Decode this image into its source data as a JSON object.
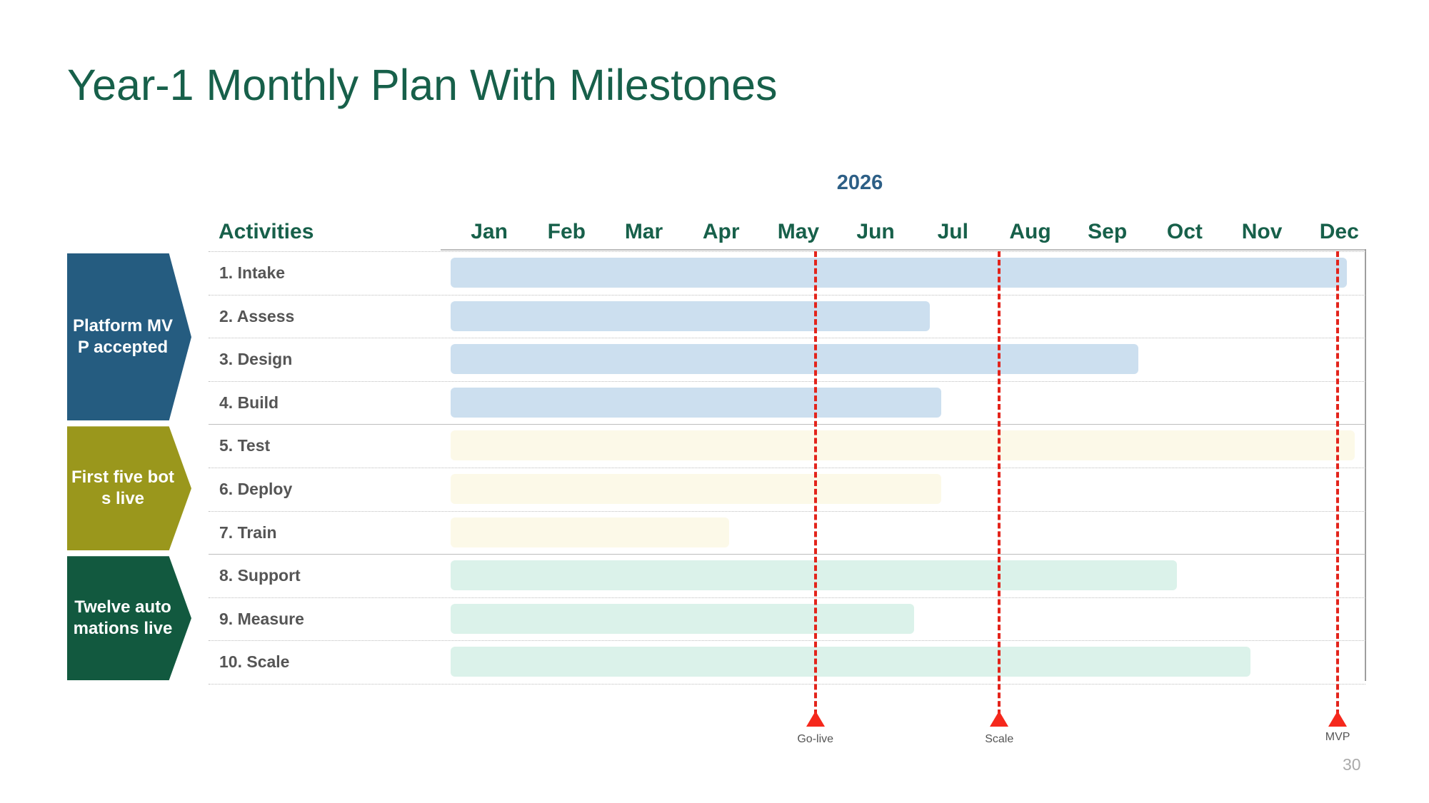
{
  "slide": {
    "title": "Year-1 Monthly Plan With Milestones",
    "page_number": "30"
  },
  "chart_data": {
    "type": "gantt",
    "year": "2026",
    "activities_header": "Activities",
    "months": [
      "Jan",
      "Feb",
      "Mar",
      "Apr",
      "May",
      "Jun",
      "Jul",
      "Aug",
      "Sep",
      "Oct",
      "Nov",
      "Dec"
    ],
    "groups": [
      {
        "label": "Platform MVP accepted",
        "color": "#255C80",
        "bar_color": "#CCDFEF",
        "rows": [
          0,
          3
        ]
      },
      {
        "label": "First five bots live",
        "color": "#9A971C",
        "bar_color": "#FCF9E8",
        "rows": [
          4,
          6
        ]
      },
      {
        "label": "Twelve automations live",
        "color": "#12593F",
        "bar_color": "#DBF2EA",
        "rows": [
          7,
          9
        ]
      }
    ],
    "activities": [
      {
        "label": "1. Intake",
        "start_month": 0,
        "end_month": 11.6,
        "group": 0
      },
      {
        "label": "2. Assess",
        "start_month": 0,
        "end_month": 6.2,
        "group": 0
      },
      {
        "label": "3. Design",
        "start_month": 0,
        "end_month": 8.9,
        "group": 0
      },
      {
        "label": "4. Build",
        "start_month": 0,
        "end_month": 6.35,
        "group": 0
      },
      {
        "label": "5. Test",
        "start_month": 0,
        "end_month": 11.7,
        "group": 1
      },
      {
        "label": "6. Deploy",
        "start_month": 0,
        "end_month": 6.35,
        "group": 1
      },
      {
        "label": "7. Train",
        "start_month": 0,
        "end_month": 3.6,
        "group": 1
      },
      {
        "label": "8. Support",
        "start_month": 0,
        "end_month": 9.4,
        "group": 2
      },
      {
        "label": "9. Measure",
        "start_month": 0,
        "end_month": 6.0,
        "group": 2
      },
      {
        "label": "10. Scale",
        "start_month": 0,
        "end_month": 10.35,
        "group": 2
      }
    ],
    "milestones": [
      {
        "label": "Go-live",
        "month": 4.72
      },
      {
        "label": "Scale",
        "month": 7.1
      },
      {
        "label": "MVP",
        "month": 11.48
      }
    ],
    "milestone_color": "#E3241B"
  }
}
